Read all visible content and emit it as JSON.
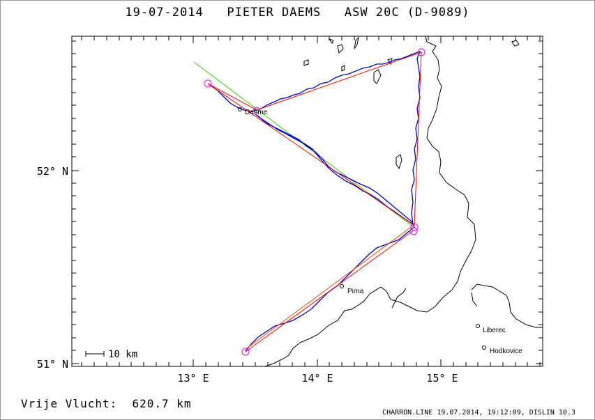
{
  "title": "19-07-2014   PIETER DAEMS   ASW 20C (D-9089)",
  "footer": {
    "distance": "Vrije Vlucht:  620.7 km",
    "info": "CHARRON.LINE 19.07.2014, 19:12:09, DISLIN 10.3"
  },
  "axes": {
    "lon_labels": [
      "13° E",
      "14° E",
      "15° E"
    ],
    "lat_labels": [
      "52° N",
      "51° N"
    ],
    "grid": false
  },
  "scale_bar": "10 km",
  "places": [
    {
      "name": "Dahme"
    },
    {
      "name": "Pirna"
    },
    {
      "name": "Liberec"
    },
    {
      "name": "Hodkovice"
    }
  ],
  "colors": {
    "track": "#0000cc",
    "task": "#ff0000",
    "optimized": "#44cc00",
    "turnpoint": "#ee00ee",
    "border": "#000000"
  }
}
